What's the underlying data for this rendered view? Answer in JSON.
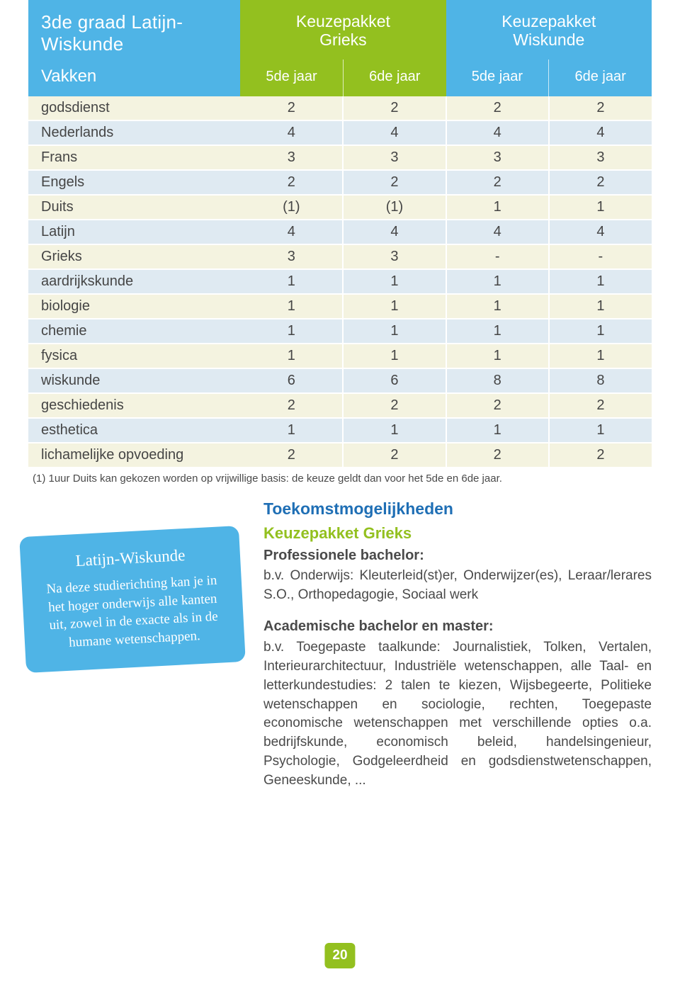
{
  "colors": {
    "header_left_bg": "#4fb4e6",
    "header_grieks_bg": "#93c01f",
    "header_wiskunde_bg": "#4fb4e6",
    "zebra0": "#f4f3e0",
    "zebra1": "#dfeaf2",
    "note_bg": "#4fb4e6",
    "future_h1_color": "#1f6fb5",
    "future_h2_color": "#93c01f",
    "pagebadge_bg": "#93c01f"
  },
  "header": {
    "title": "3de graad Latijn-Wiskunde",
    "vakken_label": "Vakken",
    "groups": [
      {
        "label": "Keuzepakket\nGrieks",
        "years": [
          "5de jaar",
          "6de jaar"
        ]
      },
      {
        "label": "Keuzepakket\nWiskunde",
        "years": [
          "5de jaar",
          "6de jaar"
        ]
      }
    ]
  },
  "rows": [
    {
      "subject": "godsdienst",
      "vals": [
        "2",
        "2",
        "2",
        "2"
      ]
    },
    {
      "subject": "Nederlands",
      "vals": [
        "4",
        "4",
        "4",
        "4"
      ]
    },
    {
      "subject": "Frans",
      "vals": [
        "3",
        "3",
        "3",
        "3"
      ]
    },
    {
      "subject": "Engels",
      "vals": [
        "2",
        "2",
        "2",
        "2"
      ]
    },
    {
      "subject": "Duits",
      "vals": [
        "(1)",
        "(1)",
        "1",
        "1"
      ]
    },
    {
      "subject": "Latijn",
      "vals": [
        "4",
        "4",
        "4",
        "4"
      ]
    },
    {
      "subject": "Grieks",
      "vals": [
        "3",
        "3",
        "-",
        "-"
      ]
    },
    {
      "subject": "aardrijkskunde",
      "vals": [
        "1",
        "1",
        "1",
        "1"
      ]
    },
    {
      "subject": "biologie",
      "vals": [
        "1",
        "1",
        "1",
        "1"
      ]
    },
    {
      "subject": "chemie",
      "vals": [
        "1",
        "1",
        "1",
        "1"
      ]
    },
    {
      "subject": "fysica",
      "vals": [
        "1",
        "1",
        "1",
        "1"
      ]
    },
    {
      "subject": "wiskunde",
      "vals": [
        "6",
        "6",
        "8",
        "8"
      ]
    },
    {
      "subject": "geschiedenis",
      "vals": [
        "2",
        "2",
        "2",
        "2"
      ]
    },
    {
      "subject": "esthetica",
      "vals": [
        "1",
        "1",
        "1",
        "1"
      ]
    },
    {
      "subject": "lichamelijke opvoeding",
      "vals": [
        "2",
        "2",
        "2",
        "2"
      ]
    }
  ],
  "footnote": "(1) 1uur Duits kan gekozen worden op vrijwillige basis: de keuze geldt dan voor het 5de en 6de jaar.",
  "note": {
    "title": "Latijn-Wiskunde",
    "body": "Na deze studierichting kan je in het hoger onderwijs alle kanten uit, zowel in de exacte als in de humane wetenschappen."
  },
  "future": {
    "h1": "Toekomstmogelijkheden",
    "h2": "Keuzepakket Grieks",
    "prof_h": "Professionele bachelor:",
    "prof_body": "b.v. Onderwijs: Kleuterleid(st)er, Onderwijzer(es), Leraar/lerares S.O., Orthopedagogie, Sociaal werk",
    "acad_h": "Academische bachelor en master:",
    "acad_body": "b.v. Toegepaste taalkunde: Journalistiek, Tolken, Vertalen, Interieurarchitectuur, Industriële wetenschappen, alle Taal- en letterkundestudies: 2 talen te kiezen, Wijsbegeerte, Politieke wetenschappen en sociologie, rechten, Toegepaste economische wetenschappen met verschillende opties o.a. bedrijfskunde, economisch beleid, handelsingenieur, Psychologie, Godgeleerdheid en godsdienstwetenschappen, Geneeskunde, ..."
  },
  "page_number": "20"
}
